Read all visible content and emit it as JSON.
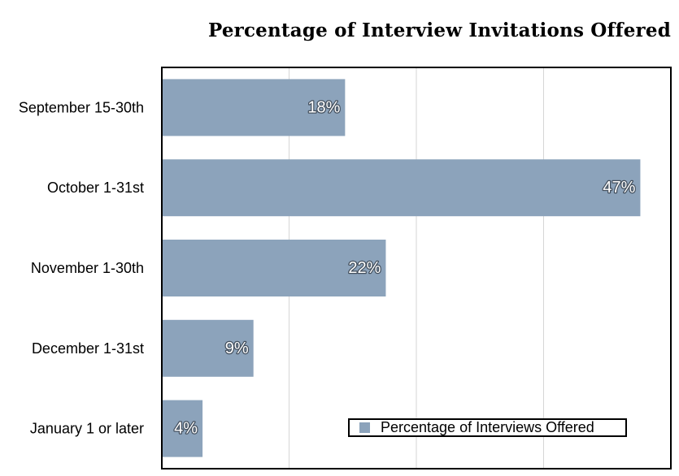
{
  "chart_data": {
    "type": "bar",
    "orientation": "horizontal",
    "title": "Percentage of Interview Invitations Offered",
    "categories": [
      "September 15-30th",
      "October 1-31st",
      "November 1-30th",
      "December 1-31st",
      "January 1 or later"
    ],
    "series": [
      {
        "name": "Percentage of Interviews Offered",
        "values": [
          18,
          47,
          22,
          9,
          4
        ],
        "labels": [
          "18%",
          "47%",
          "22%",
          "9%",
          "4%"
        ],
        "color": "#8ca3bb"
      }
    ],
    "xlim": [
      0,
      50
    ],
    "grid": true,
    "legend_position": "bottom-right"
  }
}
